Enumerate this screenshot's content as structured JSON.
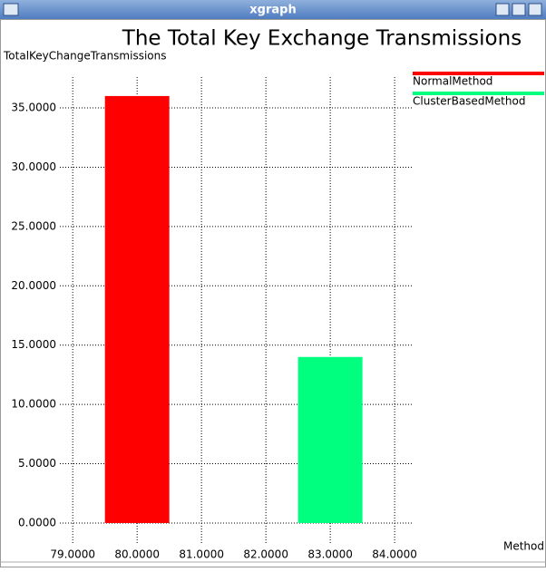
{
  "window": {
    "title": "xgraph"
  },
  "chart_data": {
    "type": "bar",
    "title": "The Total Key Exchange Transmissions",
    "y_label": "TotalKeyChangeTransmissions",
    "x_label": "Method",
    "series": [
      {
        "name": "NormalMethod",
        "color": "#ff0000",
        "x": [
          80
        ],
        "values": [
          36
        ]
      },
      {
        "name": "ClusterBasedMethod",
        "color": "#00ff7f",
        "x": [
          83
        ],
        "values": [
          14
        ]
      }
    ],
    "xlim": [
      78.8,
      84.28
    ],
    "ylim": [
      -1.76,
      37.6
    ],
    "xticks": [
      {
        "value": 79,
        "label": "79.0000"
      },
      {
        "value": 80,
        "label": "80.0000"
      },
      {
        "value": 81,
        "label": "81.0000"
      },
      {
        "value": 82,
        "label": "82.0000"
      },
      {
        "value": 83,
        "label": "83.0000"
      },
      {
        "value": 84,
        "label": "84.0000"
      }
    ],
    "yticks": [
      {
        "value": 0,
        "label": "0.0000"
      },
      {
        "value": 5,
        "label": "5.0000"
      },
      {
        "value": 10,
        "label": "10.0000"
      },
      {
        "value": 15,
        "label": "15.0000"
      },
      {
        "value": 20,
        "label": "20.0000"
      },
      {
        "value": 25,
        "label": "25.0000"
      },
      {
        "value": 30,
        "label": "30.0000"
      },
      {
        "value": 35,
        "label": "35.0000"
      }
    ],
    "grid": true,
    "legend": "top-right"
  }
}
